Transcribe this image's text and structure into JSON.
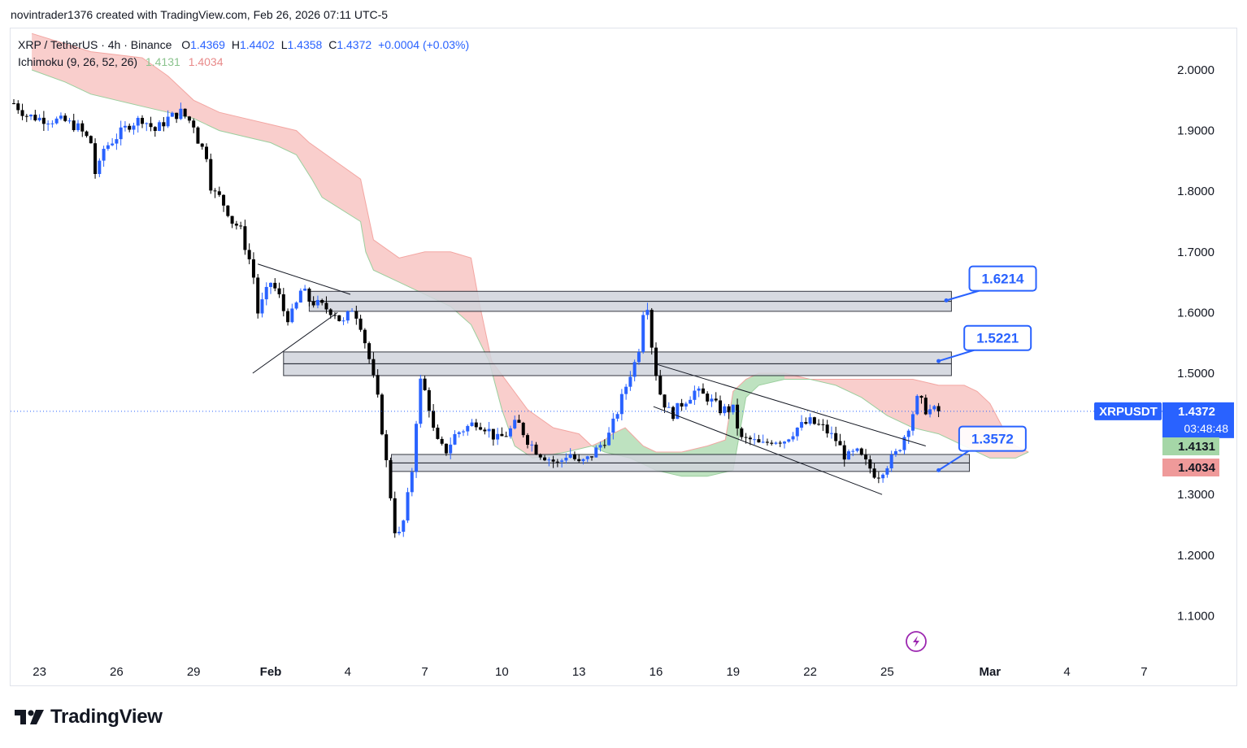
{
  "caption": "novintrader1376 created with TradingView.com, Feb 26, 2026 07:11 UTC-5",
  "legend": {
    "symbol": "XRP / TetherUS · 4h · Binance",
    "o_label": "O",
    "o_value": "1.4369",
    "h_label": "H",
    "h_value": "1.4402",
    "l_label": "L",
    "l_value": "1.4358",
    "c_label": "C",
    "c_value": "1.4372",
    "change": "+0.0004 (+0.03%)",
    "indicator": "Ichimoku (9, 26, 52, 26)",
    "ind_value1": "1.4131",
    "ind_value2": "1.4034"
  },
  "colors": {
    "up": "#2962ff",
    "down": "#000000",
    "cloud_bear": "#f8c9c6",
    "cloud_bull": "#b7dfb9",
    "zone": "#d1d4dc",
    "accent": "#2962ff"
  },
  "chart_data": {
    "type": "candlestick",
    "title": "XRP / TetherUS · 4h · Binance",
    "ylim": [
      1.05,
      2.06
    ],
    "y_ticks": [
      "2.0000",
      "1.9000",
      "1.8000",
      "1.7000",
      "1.6000",
      "1.5000",
      "1.4000",
      "1.3000",
      "1.2000",
      "1.1000"
    ],
    "y_tick_values": [
      2.0,
      1.9,
      1.8,
      1.7,
      1.6,
      1.5,
      1.4,
      1.3,
      1.2,
      1.1
    ],
    "x_ticks": [
      "23",
      "26",
      "29",
      "Feb",
      "4",
      "7",
      "10",
      "13",
      "16",
      "19",
      "22",
      "25",
      "Mar",
      "4",
      "7"
    ],
    "x_tick_days": [
      -9,
      -6,
      -3,
      0,
      3,
      6,
      9,
      12,
      15,
      18,
      21,
      24,
      28,
      31,
      34
    ],
    "last_price": "1.4372",
    "last_price_value": 1.4372,
    "symbol_tag": "XRPUSDT",
    "countdown": "03:48:48",
    "ichimoku_values": [
      "1.4131",
      "1.4034"
    ],
    "ichimoku_values_num": [
      1.4131,
      1.4034
    ],
    "price_path": [
      [
        -10,
        1.945
      ],
      [
        -9.5,
        1.925
      ],
      [
        -9,
        1.92
      ],
      [
        -8,
        1.915
      ],
      [
        -7.5,
        1.905
      ],
      [
        -7,
        1.88
      ],
      [
        -6.8,
        1.82
      ],
      [
        -6.5,
        1.87
      ],
      [
        -6,
        1.89
      ],
      [
        -5.5,
        1.91
      ],
      [
        -5,
        1.92
      ],
      [
        -4.5,
        1.9
      ],
      [
        -4,
        1.92
      ],
      [
        -3.5,
        1.93
      ],
      [
        -3,
        1.91
      ],
      [
        -2.8,
        1.88
      ],
      [
        -2.5,
        1.86
      ],
      [
        -2.3,
        1.8
      ],
      [
        -2,
        1.79
      ],
      [
        -1.7,
        1.77
      ],
      [
        -1.5,
        1.75
      ],
      [
        -1.2,
        1.74
      ],
      [
        -1,
        1.71
      ],
      [
        -0.7,
        1.67
      ],
      [
        -0.5,
        1.6
      ],
      [
        -0.3,
        1.62
      ],
      [
        0,
        1.65
      ],
      [
        0.3,
        1.63
      ],
      [
        0.6,
        1.59
      ],
      [
        0.9,
        1.6
      ],
      [
        1.2,
        1.64
      ],
      [
        1.5,
        1.62
      ],
      [
        2,
        1.61
      ],
      [
        2.5,
        1.6
      ],
      [
        2.8,
        1.58
      ],
      [
        3.2,
        1.61
      ],
      [
        3.5,
        1.58
      ],
      [
        3.8,
        1.53
      ],
      [
        4.2,
        1.45
      ],
      [
        4.6,
        1.32
      ],
      [
        4.9,
        1.22
      ],
      [
        5.2,
        1.26
      ],
      [
        5.5,
        1.34
      ],
      [
        5.8,
        1.49
      ],
      [
        6.1,
        1.46
      ],
      [
        6.4,
        1.39
      ],
      [
        6.8,
        1.37
      ],
      [
        7.2,
        1.4
      ],
      [
        7.6,
        1.41
      ],
      [
        8,
        1.42
      ],
      [
        8.4,
        1.41
      ],
      [
        8.8,
        1.39
      ],
      [
        9.2,
        1.4
      ],
      [
        9.6,
        1.42
      ],
      [
        10,
        1.39
      ],
      [
        10.4,
        1.37
      ],
      [
        10.8,
        1.36
      ],
      [
        11.2,
        1.35
      ],
      [
        11.6,
        1.37
      ],
      [
        12,
        1.35
      ],
      [
        12.4,
        1.36
      ],
      [
        12.8,
        1.38
      ],
      [
        13.2,
        1.4
      ],
      [
        13.6,
        1.45
      ],
      [
        14,
        1.5
      ],
      [
        14.3,
        1.53
      ],
      [
        14.6,
        1.64
      ],
      [
        14.9,
        1.52
      ],
      [
        15.2,
        1.46
      ],
      [
        15.6,
        1.43
      ],
      [
        16,
        1.45
      ],
      [
        16.5,
        1.47
      ],
      [
        17,
        1.46
      ],
      [
        17.5,
        1.44
      ],
      [
        18,
        1.44
      ],
      [
        18.3,
        1.39
      ],
      [
        18.7,
        1.39
      ],
      [
        19.1,
        1.38
      ],
      [
        19.5,
        1.39
      ],
      [
        20,
        1.39
      ],
      [
        20.5,
        1.41
      ],
      [
        21,
        1.42
      ],
      [
        21.5,
        1.41
      ],
      [
        22,
        1.39
      ],
      [
        22.4,
        1.36
      ],
      [
        22.8,
        1.37
      ],
      [
        23.2,
        1.35
      ],
      [
        23.6,
        1.33
      ],
      [
        24,
        1.35
      ],
      [
        24.4,
        1.37
      ],
      [
        24.8,
        1.41
      ],
      [
        25.2,
        1.46
      ],
      [
        25.5,
        1.44
      ],
      [
        26,
        1.4372
      ]
    ],
    "resistance_lines": [
      {
        "label": "1.6214",
        "value": 1.6214
      },
      {
        "label": "1.5221",
        "value": 1.5221
      },
      {
        "label": "1.3572",
        "value": 1.3572
      }
    ],
    "zones": [
      {
        "low": 1.602,
        "high": 1.635
      },
      {
        "low": 1.496,
        "high": 1.535
      },
      {
        "low": 1.338,
        "high": 1.366
      }
    ]
  }
}
